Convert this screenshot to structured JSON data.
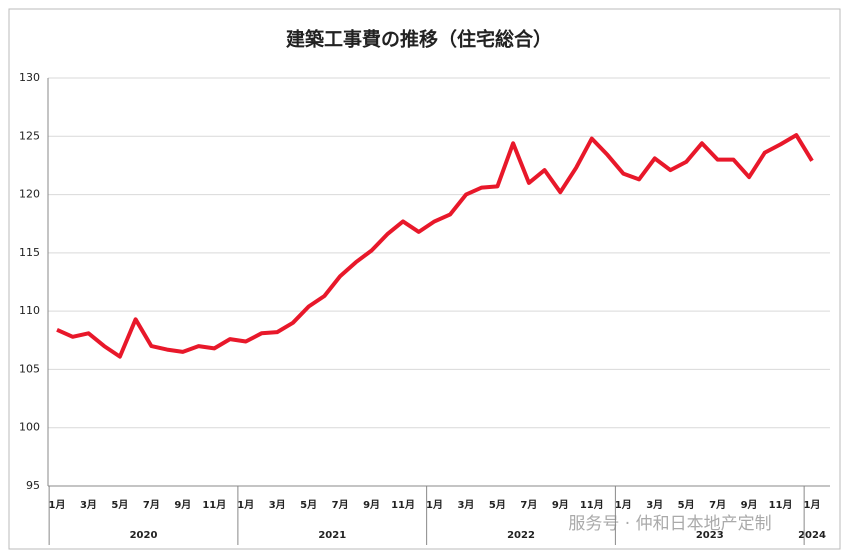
{
  "chart_data": {
    "type": "line",
    "title": "建築工事費の推移（住宅総合）",
    "categories": [
      "1月",
      null,
      "3月",
      null,
      "5月",
      null,
      "7月",
      null,
      "9月",
      null,
      "11月",
      null,
      "1月",
      null,
      "3月",
      null,
      "5月",
      null,
      "7月",
      null,
      "9月",
      null,
      "11月",
      null,
      "1月",
      null,
      "3月",
      null,
      "5月",
      null,
      "7月",
      null,
      "9月",
      null,
      "11月",
      null,
      "1月",
      null,
      "3月",
      null,
      "5月",
      null,
      "7月",
      null,
      "9月",
      null,
      "11月",
      null,
      "1月"
    ],
    "year_labels": [
      "2020",
      "2021",
      "2022",
      "2023",
      "2024"
    ],
    "series": [
      {
        "color": "#e8182a",
        "values": [
          108.4,
          107.8,
          108.1,
          107.0,
          106.1,
          109.3,
          107.0,
          106.7,
          106.5,
          107.0,
          106.8,
          107.6,
          107.4,
          108.1,
          108.2,
          109.0,
          110.4,
          111.3,
          113.0,
          114.2,
          115.2,
          116.6,
          117.7,
          116.8,
          117.7,
          118.3,
          120.0,
          120.6,
          120.7,
          124.4,
          121.0,
          122.1,
          120.2,
          122.3,
          124.8,
          123.4,
          121.8,
          121.3,
          123.1,
          122.1,
          122.8,
          124.4,
          123.0,
          123.0,
          121.5,
          123.6,
          124.3,
          125.1,
          122.9
        ]
      }
    ],
    "ylim": [
      95,
      130
    ],
    "yticks": [
      95,
      100,
      105,
      110,
      115,
      120,
      125,
      130
    ],
    "grid": true,
    "watermark": "服务号 · 仲和日本地产定制"
  }
}
